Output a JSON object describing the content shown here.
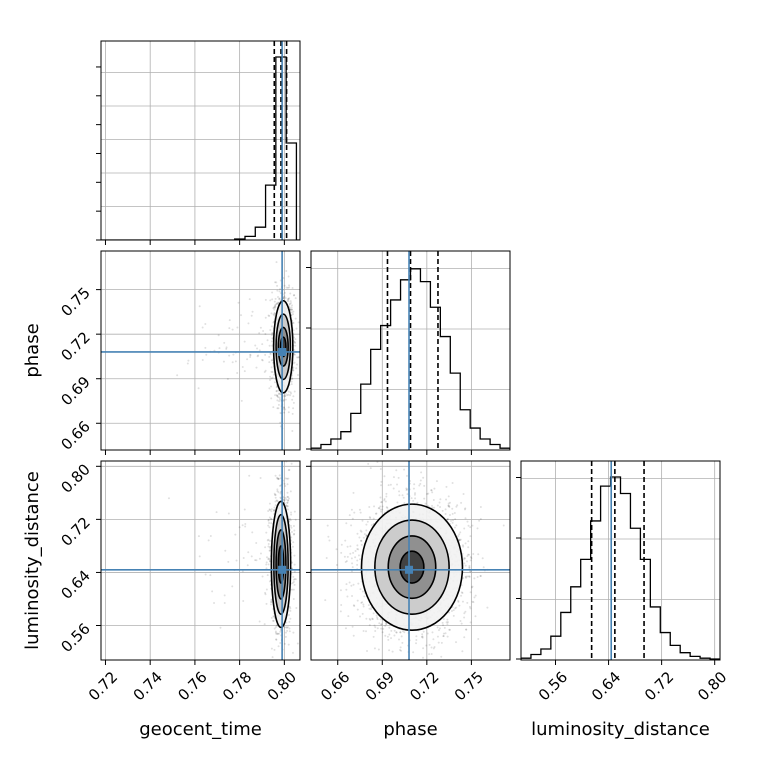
{
  "chart_data": {
    "type": "corner",
    "parameters": [
      "geocent_time",
      "phase",
      "luminosity_distance"
    ],
    "truths": [
      0.799,
      0.708,
      0.644
    ],
    "ranges": [
      [
        0.718,
        0.807
      ],
      [
        0.642,
        0.776
      ],
      [
        0.508,
        0.808
      ]
    ],
    "ticks": {
      "geocent_time": [
        "0.72",
        "0.74",
        "0.76",
        "0.78",
        "0.80"
      ],
      "phase": [
        "0.66",
        "0.69",
        "0.72",
        "0.75"
      ],
      "luminosity_distance": [
        "0.56",
        "0.64",
        "0.72",
        "0.80"
      ]
    },
    "quantiles": {
      "geocent_time": [
        0.7955,
        0.7985,
        0.801
      ],
      "phase": [
        0.6935,
        0.709,
        0.7275
      ],
      "luminosity_distance": [
        0.6145,
        0.6495,
        0.6935
      ]
    },
    "histograms": {
      "geocent_time": {
        "edges": [
          0.718,
          0.7226,
          0.7272,
          0.7318,
          0.7364,
          0.741,
          0.7456,
          0.7502,
          0.7548,
          0.7594,
          0.764,
          0.7686,
          0.7732,
          0.7778,
          0.7824,
          0.787,
          0.7916,
          0.7962,
          0.8008,
          0.8054,
          0.81
        ],
        "values": [
          0,
          0,
          0,
          0,
          0,
          0,
          0,
          0,
          0,
          0,
          0,
          0,
          0,
          0.005,
          0.02,
          0.07,
          0.3,
          1.0,
          0.53,
          0
        ]
      },
      "phase": {
        "edges": [
          0.642,
          0.6487,
          0.6554,
          0.6621,
          0.6688,
          0.6755,
          0.6822,
          0.6889,
          0.6956,
          0.7023,
          0.709,
          0.7157,
          0.7224,
          0.7291,
          0.7358,
          0.7425,
          0.7492,
          0.7559,
          0.7626,
          0.7693,
          0.776
        ],
        "values": [
          0.01,
          0.03,
          0.06,
          0.1,
          0.2,
          0.36,
          0.55,
          0.68,
          0.82,
          0.93,
          0.99,
          0.92,
          0.78,
          0.62,
          0.42,
          0.22,
          0.12,
          0.06,
          0.03,
          0.01
        ]
      },
      "luminosity_distance": {
        "edges": [
          0.508,
          0.523,
          0.538,
          0.553,
          0.568,
          0.583,
          0.598,
          0.613,
          0.628,
          0.643,
          0.658,
          0.673,
          0.688,
          0.703,
          0.718,
          0.733,
          0.748,
          0.763,
          0.778,
          0.793,
          0.808
        ],
        "values": [
          0.01,
          0.03,
          0.06,
          0.13,
          0.26,
          0.4,
          0.55,
          0.76,
          0.95,
          1.0,
          0.91,
          0.72,
          0.55,
          0.29,
          0.15,
          0.08,
          0.04,
          0.02,
          0.01,
          0.005
        ]
      }
    },
    "contours": {
      "phase_vs_geocent_time": {
        "center": [
          0.7995,
          0.7115
        ],
        "widths": [
          [
            0.0012,
            0.0065
          ],
          [
            0.0022,
            0.013
          ],
          [
            0.0032,
            0.022
          ],
          [
            0.0043,
            0.031
          ]
        ]
      },
      "luminosity_distance_vs_geocent_time": {
        "center": [
          0.7985,
          0.652
        ],
        "widths": [
          [
            0.0012,
            0.028
          ],
          [
            0.0022,
            0.052
          ],
          [
            0.0032,
            0.075
          ],
          [
            0.0043,
            0.095
          ]
        ]
      },
      "luminosity_distance_vs_phase": {
        "center": [
          0.71,
          0.648
        ],
        "widths": [
          [
            0.008,
            0.024
          ],
          [
            0.016,
            0.047
          ],
          [
            0.025,
            0.071
          ],
          [
            0.034,
            0.095
          ]
        ]
      }
    },
    "grid": true
  }
}
